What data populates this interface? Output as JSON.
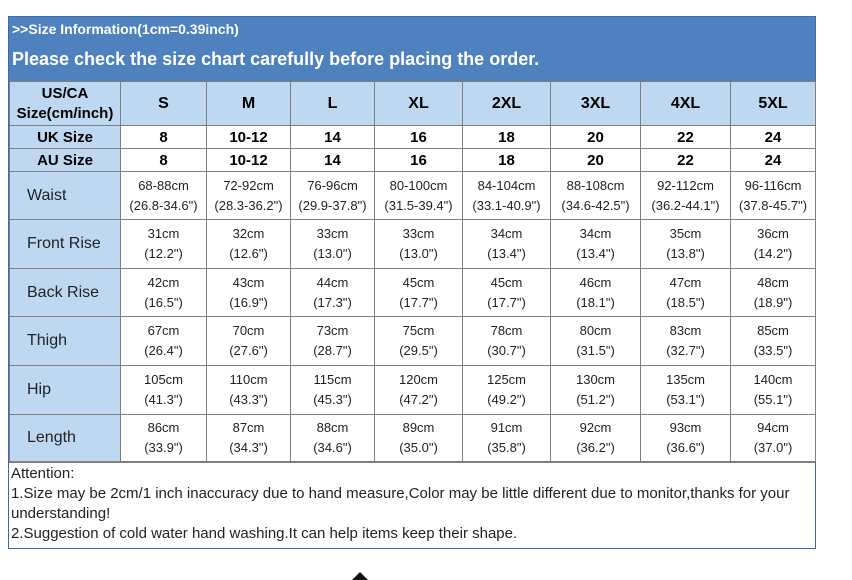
{
  "banner": {
    "line1": ">>Size Information(1cm=0.39inch)",
    "line2": "Please check the size chart carefully before placing the order."
  },
  "header": {
    "label": "US/CA Size(cm/inch)",
    "sizes": [
      "S",
      "M",
      "L",
      "XL",
      "2XL",
      "3XL",
      "4XL",
      "5XL"
    ]
  },
  "uk": {
    "label": "UK Size",
    "values": [
      "8",
      "10-12",
      "14",
      "16",
      "18",
      "20",
      "22",
      "24"
    ]
  },
  "au": {
    "label": "AU Size",
    "values": [
      "8",
      "10-12",
      "14",
      "16",
      "18",
      "20",
      "22",
      "24"
    ]
  },
  "measurements": [
    {
      "label": "Waist",
      "cm": [
        "68-88cm",
        "72-92cm",
        "76-96cm",
        "80-100cm",
        "84-104cm",
        "88-108cm",
        "92-112cm",
        "96-116cm"
      ],
      "inch": [
        "(26.8-34.6\")",
        "(28.3-36.2\")",
        "(29.9-37.8\")",
        "(31.5-39.4\")",
        "(33.1-40.9\")",
        "(34.6-42.5\")",
        "(36.2-44.1\")",
        "(37.8-45.7\")"
      ]
    },
    {
      "label": "Front Rise",
      "cm": [
        "31cm",
        "32cm",
        "33cm",
        "33cm",
        "34cm",
        "34cm",
        "35cm",
        "36cm"
      ],
      "inch": [
        "(12.2\")",
        "(12.6\")",
        "(13.0\")",
        "(13.0\")",
        "(13.4\")",
        "(13.4\")",
        "(13.8\")",
        "(14.2\")"
      ]
    },
    {
      "label": "Back Rise",
      "cm": [
        "42cm",
        "43cm",
        "44cm",
        "45cm",
        "45cm",
        "46cm",
        "47cm",
        "48cm"
      ],
      "inch": [
        "(16.5\")",
        "(16.9\")",
        "(17.3\")",
        "(17.7\")",
        "(17.7\")",
        "(18.1\")",
        "(18.5\")",
        "(18.9\")"
      ]
    },
    {
      "label": "Thigh",
      "cm": [
        "67cm",
        "70cm",
        "73cm",
        "75cm",
        "78cm",
        "80cm",
        "83cm",
        "85cm"
      ],
      "inch": [
        "(26.4\")",
        "(27.6\")",
        "(28.7\")",
        "(29.5\")",
        "(30.7\")",
        "(31.5\")",
        "(32.7\")",
        "(33.5\")"
      ]
    },
    {
      "label": "Hip",
      "cm": [
        "105cm",
        "110cm",
        "115cm",
        "120cm",
        "125cm",
        "130cm",
        "135cm",
        "140cm"
      ],
      "inch": [
        "(41.3\")",
        "(43.3\")",
        "(45.3\")",
        "(47.2\")",
        "(49.2\")",
        "(51.2\")",
        "(53.1\")",
        "(55.1\")"
      ]
    },
    {
      "label": "Length",
      "cm": [
        "86cm",
        "87cm",
        "88cm",
        "89cm",
        "91cm",
        "92cm",
        "93cm",
        "94cm"
      ],
      "inch": [
        "(33.9\")",
        "(34.3\")",
        "(34.6\")",
        "(35.0\")",
        "(35.8\")",
        "(36.2\")",
        "(36.6\")",
        "(37.0\")"
      ]
    }
  ],
  "notes": {
    "title": "Attention:",
    "line1": "1.Size may be 2cm/1 inch inaccuracy due to hand measure,Color may be little different due to monitor,thanks for your understanding!",
    "line2": "2.Suggestion of cold water hand washing.It can help items keep their shape."
  },
  "colors": {
    "banner": "#4e81bd",
    "header": "#bfd8f2",
    "border": "#7f7f7f"
  }
}
